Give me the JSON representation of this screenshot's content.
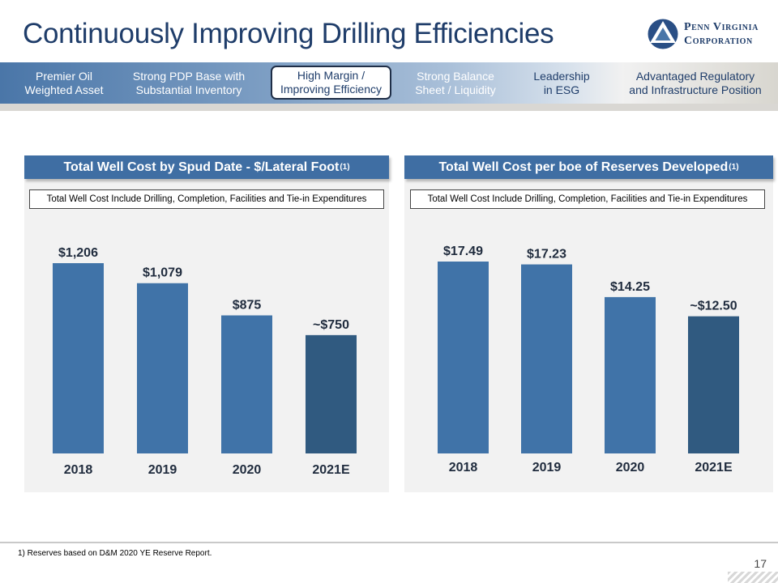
{
  "title": "Continuously Improving Drilling Efficiencies",
  "logo": {
    "line1": "Penn Virginia",
    "line2": "Corporation",
    "mark": "triangle-in-circle-logo"
  },
  "nav": [
    {
      "label": "Premier Oil\nWeighted Asset",
      "active": false
    },
    {
      "label": "Strong PDP Base with\nSubstantial Inventory",
      "active": false
    },
    {
      "label": "High Margin /\nImproving Efficiency",
      "active": true
    },
    {
      "label": "Strong Balance\nSheet / Liquidity",
      "active": false
    },
    {
      "label": "Leadership\nin ESG",
      "active": false
    },
    {
      "label": "Advantaged Regulatory\nand Infrastructure Position",
      "active": false
    }
  ],
  "left_panel": {
    "header": "Total Well Cost by Spud Date - $/Lateral Foot",
    "header_sup": "(1)",
    "note": "Total Well Cost Include Drilling, Completion, Facilities and Tie-in Expenditures"
  },
  "right_panel": {
    "header": "Total Well Cost per boe of Reserves Developed",
    "header_sup": "(1)",
    "note": "Total Well Cost Include Drilling, Completion, Facilities and Tie-in Expenditures"
  },
  "chart_data": [
    {
      "type": "bar",
      "title": "Total Well Cost by Spud Date - $/Lateral Foot",
      "categories": [
        "2018",
        "2019",
        "2020",
        "2021E"
      ],
      "values": [
        1206,
        1079,
        875,
        750
      ],
      "data_labels": [
        "$1,206",
        "$1,079",
        "$875",
        "~$750"
      ],
      "bar_colors": [
        "#4073a8",
        "#4073a8",
        "#4073a8",
        "#305a80"
      ],
      "ylim": [
        0,
        1206
      ]
    },
    {
      "type": "bar",
      "title": "Total Well Cost per boe of Reserves Developed",
      "categories": [
        "2018",
        "2019",
        "2020",
        "2021E"
      ],
      "values": [
        17.49,
        17.23,
        14.25,
        12.5
      ],
      "data_labels": [
        "$17.49",
        "$17.23",
        "$14.25",
        "~$12.50"
      ],
      "bar_colors": [
        "#4073a8",
        "#4073a8",
        "#4073a8",
        "#305a80"
      ],
      "ylim": [
        0,
        17.49
      ]
    }
  ],
  "footnote": "1)  Reserves based on D&M 2020 YE Reserve Report.",
  "page_number": "17"
}
